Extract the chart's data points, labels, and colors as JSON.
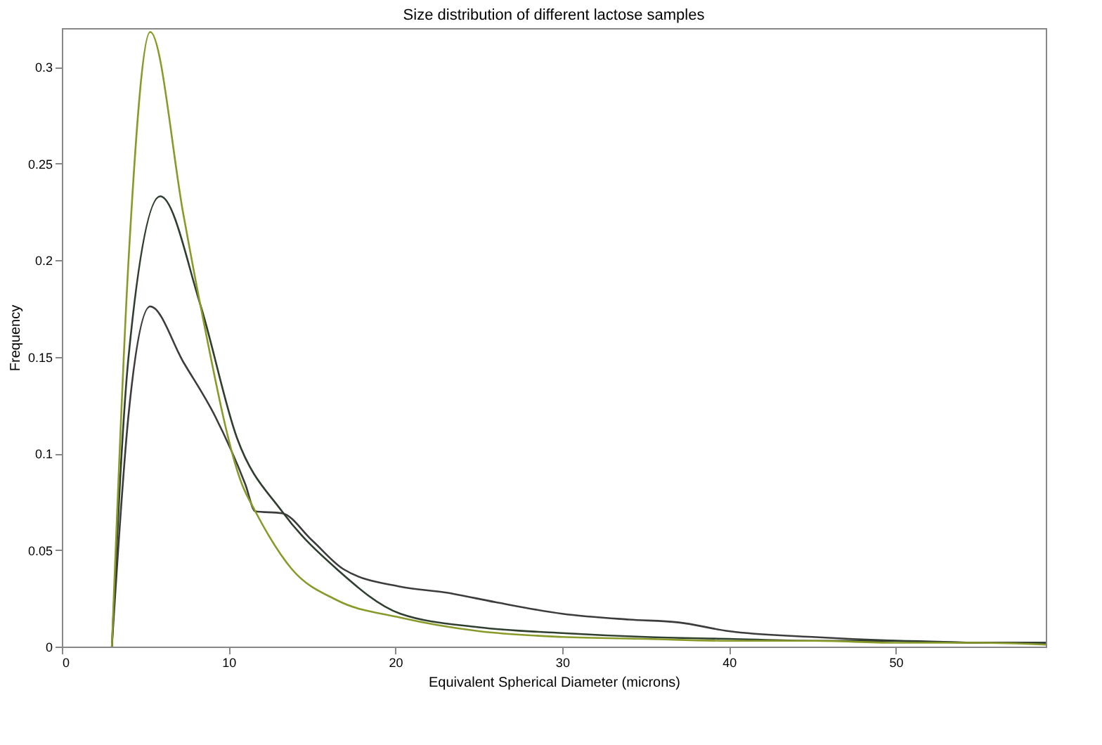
{
  "chart_data": {
    "type": "line",
    "title": "Size distribution of different lactose samples",
    "xlabel": "Equivalent Spherical Diameter (microns)",
    "ylabel": "Frequency",
    "xlim": [
      0,
      59
    ],
    "ylim": [
      0,
      0.32
    ],
    "xticks": [
      0,
      10,
      20,
      30,
      40,
      50
    ],
    "yticks": [
      0,
      0.05,
      0.1,
      0.15,
      0.2,
      0.25,
      0.3
    ],
    "grid": false,
    "line_style": "solid",
    "marker": "none",
    "series": [
      {
        "color": "#3c3c3c",
        "x": [
          3,
          4,
          5.3,
          7.3,
          9.2,
          11,
          11.6,
          13.2,
          15,
          16.9,
          20.3,
          23,
          26,
          30,
          34,
          37,
          40,
          45,
          50,
          55,
          59
        ],
        "values": [
          0,
          0.12,
          0.176,
          0.147,
          0.119,
          0.084,
          0.07,
          0.069,
          0.055,
          0.04,
          0.031,
          0.028,
          0.023,
          0.017,
          0.014,
          0.0125,
          0.008,
          0.005,
          0.003,
          0.002,
          0.002
        ]
      },
      {
        "color": "#2f3f2f",
        "x": [
          3,
          4,
          5.9,
          8.3,
          10.5,
          13.2,
          16.5,
          20.3,
          25,
          30,
          35,
          40,
          45,
          50,
          55,
          59
        ],
        "values": [
          0,
          0.15,
          0.233,
          0.177,
          0.108,
          0.07,
          0.04,
          0.017,
          0.01,
          0.007,
          0.005,
          0.004,
          0.003,
          0.003,
          0.002,
          0.002
        ]
      },
      {
        "color": "#8a9a2a",
        "x": [
          3,
          4,
          5.3,
          7.3,
          8.3,
          10.8,
          11.6,
          13.8,
          16.5,
          20.3,
          25,
          30,
          35,
          40,
          45,
          50,
          55,
          59
        ],
        "values": [
          0,
          0.2,
          0.318,
          0.223,
          0.177,
          0.084,
          0.07,
          0.04,
          0.024,
          0.015,
          0.008,
          0.005,
          0.004,
          0.003,
          0.003,
          0.002,
          0.002,
          0.001
        ]
      }
    ]
  }
}
